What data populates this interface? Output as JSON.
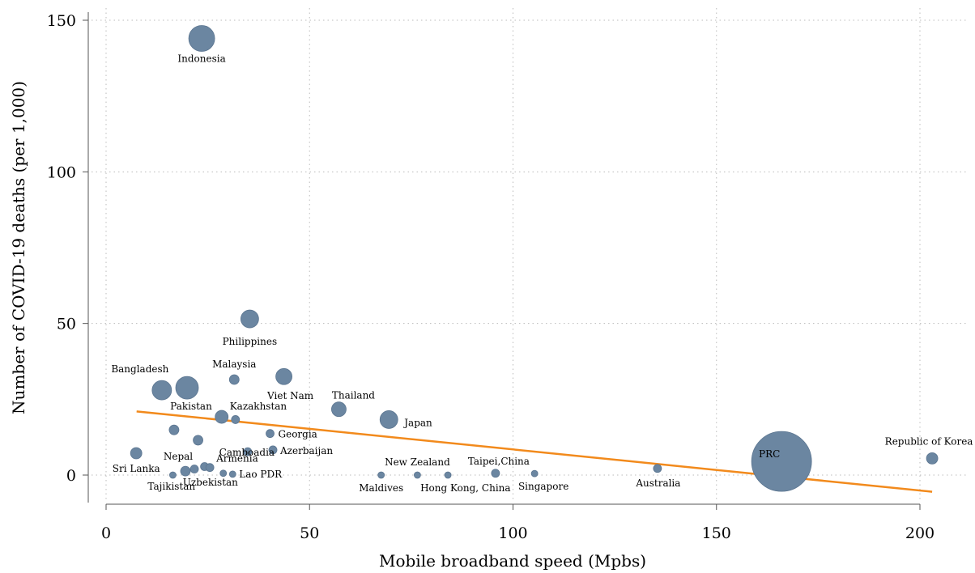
{
  "chart_data": {
    "type": "scatter",
    "xlabel": "Mobile broadband speed (Mpbs)",
    "ylabel": "Number of COVID-19 deaths (per 1,000)",
    "xlim": [
      0,
      205
    ],
    "ylim": [
      -5,
      155
    ],
    "xticks": [
      0,
      50,
      100,
      150,
      200
    ],
    "yticks": [
      0,
      50,
      100,
      150
    ],
    "grid": true,
    "marker_color": "#6b86a1",
    "fit_line_color": "#f28a1c",
    "points": [
      {
        "label": "Indonesia",
        "x": 23.5,
        "y": 144.0,
        "size": 16
      },
      {
        "label": "Philippines",
        "x": 35.3,
        "y": 51.5,
        "size": 11
      },
      {
        "label": "Bangladesh",
        "x": 13.7,
        "y": 28.0,
        "size": 12
      },
      {
        "label": "Pakistan",
        "x": 19.9,
        "y": 28.8,
        "size": 14
      },
      {
        "label": "Malaysia",
        "x": 31.5,
        "y": 31.5,
        "size": 6
      },
      {
        "label": "Viet Nam",
        "x": 43.7,
        "y": 32.5,
        "size": 10
      },
      {
        "label": "Thailand",
        "x": 57.2,
        "y": 21.7,
        "size": 9
      },
      {
        "label": "Japan",
        "x": 69.5,
        "y": 18.3,
        "size": 11
      },
      {
        "label": "Kazakhstan",
        "x": 28.4,
        "y": 19.2,
        "size": 8
      },
      {
        "label": "",
        "x": 31.8,
        "y": 18.3,
        "size": 5
      },
      {
        "label": "",
        "x": 16.7,
        "y": 14.9,
        "size": 6
      },
      {
        "label": "",
        "x": 22.6,
        "y": 11.5,
        "size": 6
      },
      {
        "label": "Georgia",
        "x": 40.3,
        "y": 13.7,
        "size": 5
      },
      {
        "label": "Azerbaijan",
        "x": 41.0,
        "y": 8.3,
        "size": 5
      },
      {
        "label": "Camboadia",
        "x": 34.8,
        "y": 7.7,
        "size": 5
      },
      {
        "label": "Sri Lanka",
        "x": 7.4,
        "y": 7.2,
        "size": 7
      },
      {
        "label": "Nepal",
        "x": 19.5,
        "y": 1.3,
        "size": 6
      },
      {
        "label": "",
        "x": 21.7,
        "y": 2.0,
        "size": 5
      },
      {
        "label": "",
        "x": 24.2,
        "y": 2.8,
        "size": 5
      },
      {
        "label": "Armenia",
        "x": 25.5,
        "y": 2.5,
        "size": 5
      },
      {
        "label": "Tajikistan",
        "x": 16.4,
        "y": 0.0,
        "size": 4
      },
      {
        "label": "Uzbekistan",
        "x": 28.8,
        "y": 0.6,
        "size": 4
      },
      {
        "label": "Lao PDR",
        "x": 31.1,
        "y": 0.3,
        "size": 4
      },
      {
        "label": "Maldives",
        "x": 67.6,
        "y": 0.0,
        "size": 4
      },
      {
        "label": "New Zealand",
        "x": 76.5,
        "y": 0.0,
        "size": 4
      },
      {
        "label": "Hong Kong, China",
        "x": 84.0,
        "y": 0.0,
        "size": 4
      },
      {
        "label": "Taipei,China",
        "x": 95.7,
        "y": 0.6,
        "size": 5
      },
      {
        "label": "Singapore",
        "x": 105.3,
        "y": 0.5,
        "size": 4
      },
      {
        "label": "Australia",
        "x": 135.5,
        "y": 2.2,
        "size": 5
      },
      {
        "label": "PRC",
        "x": 166.0,
        "y": 4.5,
        "size": 37
      },
      {
        "label": "Republic of Korea",
        "x": 203.0,
        "y": 5.5,
        "size": 7
      }
    ],
    "fit_line": [
      {
        "x": 7.5,
        "y": 21.0
      },
      {
        "x": 203.0,
        "y": -5.5
      }
    ]
  }
}
